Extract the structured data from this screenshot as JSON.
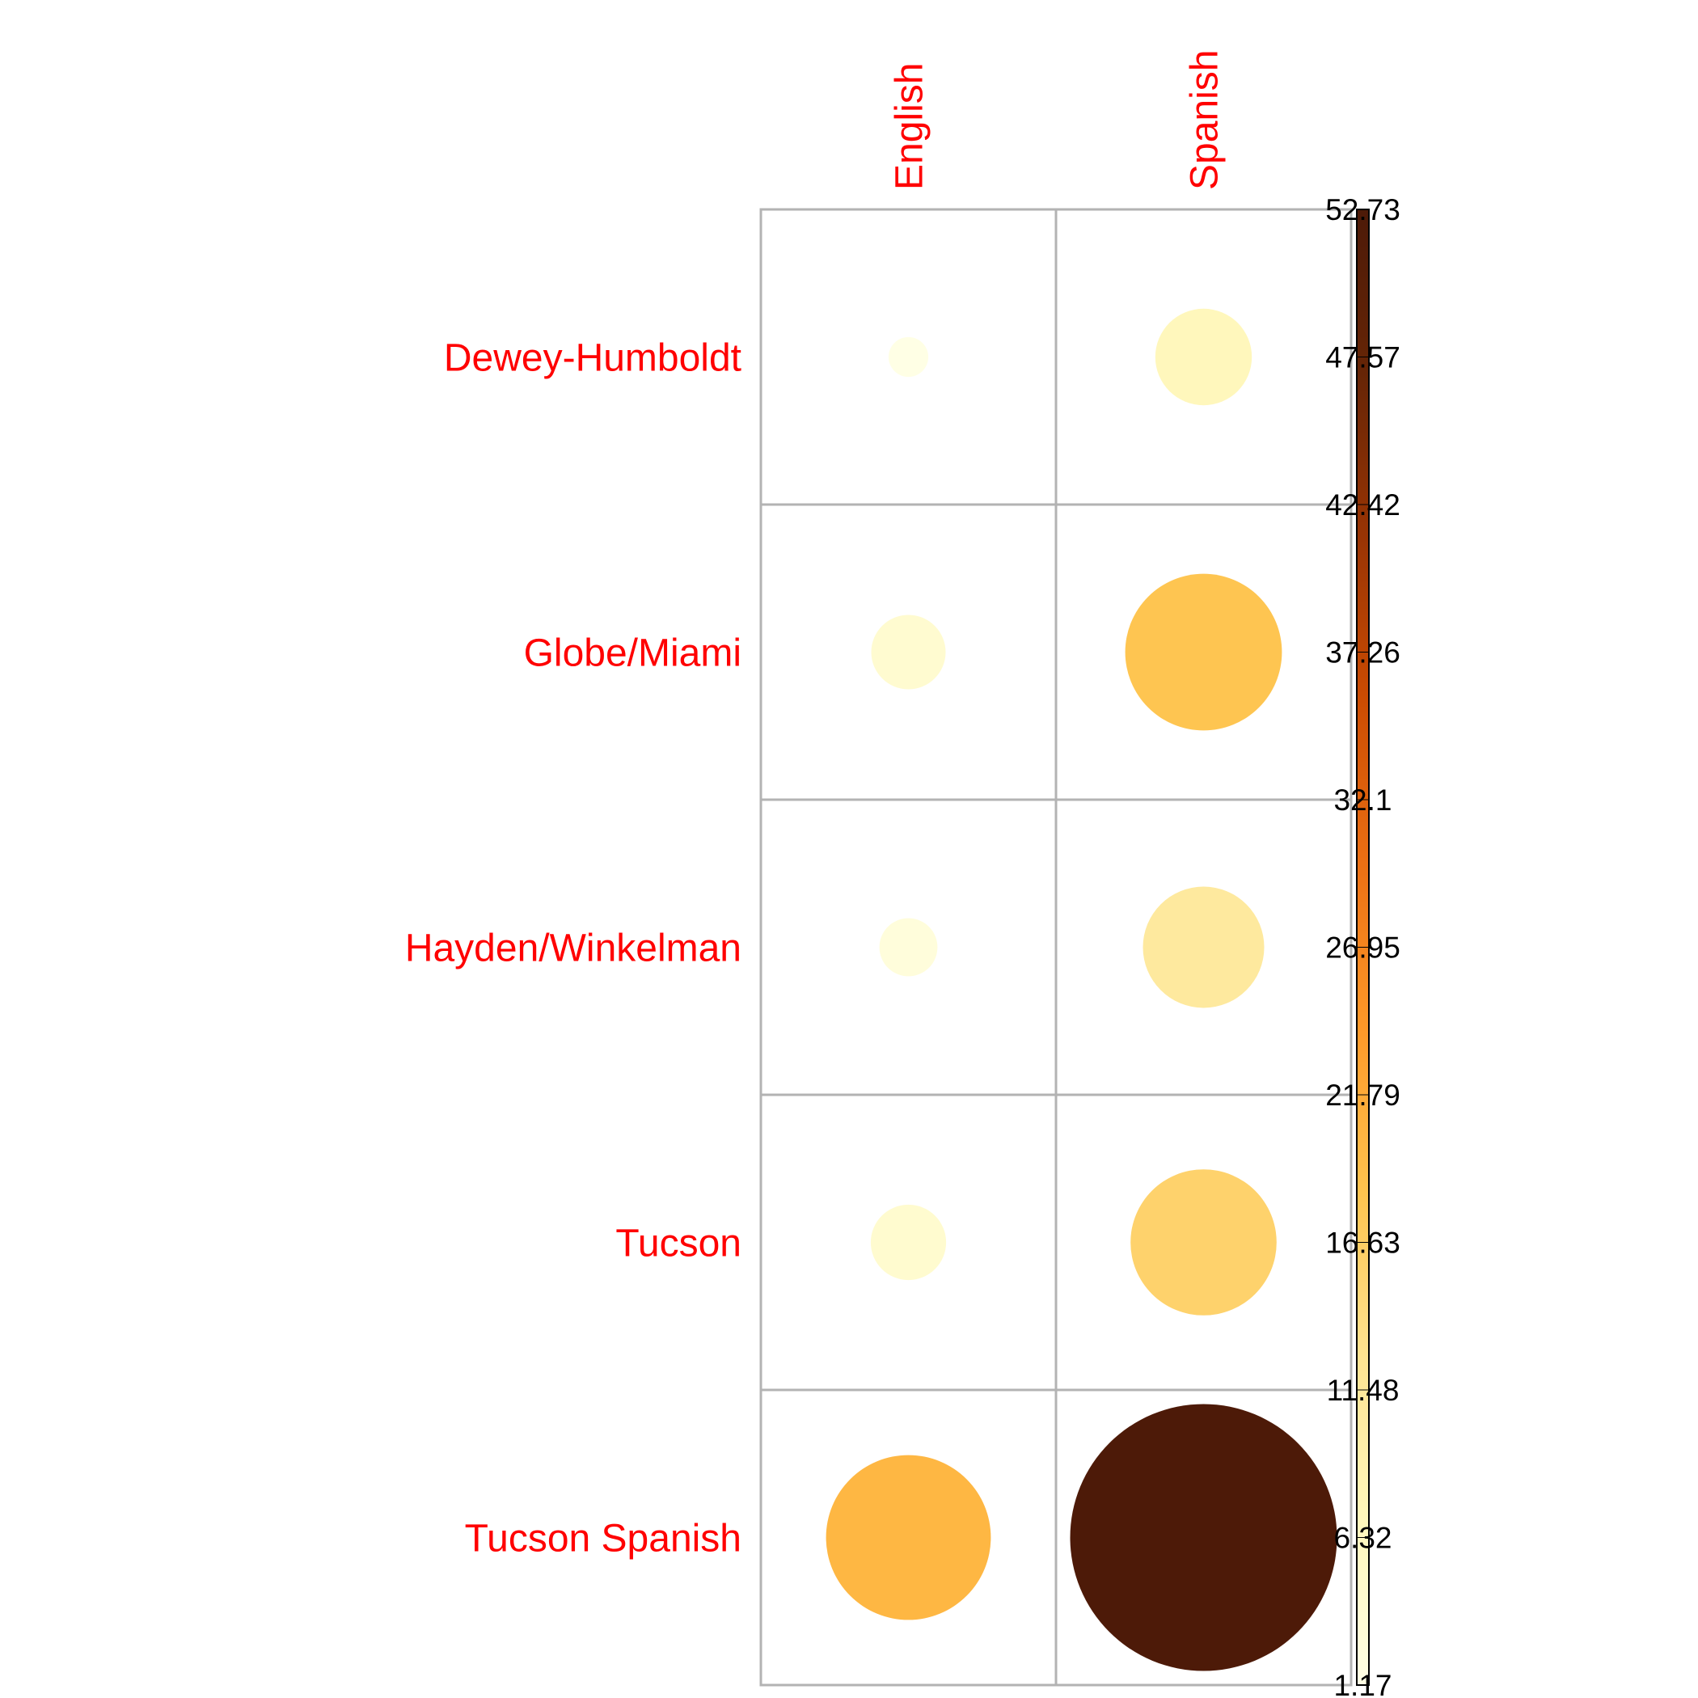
{
  "chart_data": {
    "type": "balloon",
    "rows": [
      "Dewey-Humboldt",
      "Globe/Miami",
      "Hayden/Winkelman",
      "Tucson",
      "Tucson Spanish"
    ],
    "columns": [
      "English",
      "Spanish"
    ],
    "values": [
      [
        1.17,
        6.9
      ],
      [
        4.1,
        18.2
      ],
      [
        2.5,
        10.9
      ],
      [
        4.2,
        15.8
      ],
      [
        20.1,
        52.73
      ]
    ],
    "color_scale": {
      "min": 1.17,
      "max": 52.73,
      "ticks": [
        "52.73",
        "47.57",
        "42.42",
        "37.26",
        "32.1",
        "26.95",
        "21.79",
        "16.63",
        "11.48",
        "6.32",
        "1.17"
      ],
      "colors": [
        "#ffffe5",
        "#fff7bc",
        "#fee391",
        "#fec44f",
        "#fe9929",
        "#ec7014",
        "#cc4c02",
        "#993404",
        "#662506",
        "#4d1a08"
      ]
    },
    "grid": true,
    "label_color": "#ff0000",
    "grid_color": "#b3b3b3"
  }
}
